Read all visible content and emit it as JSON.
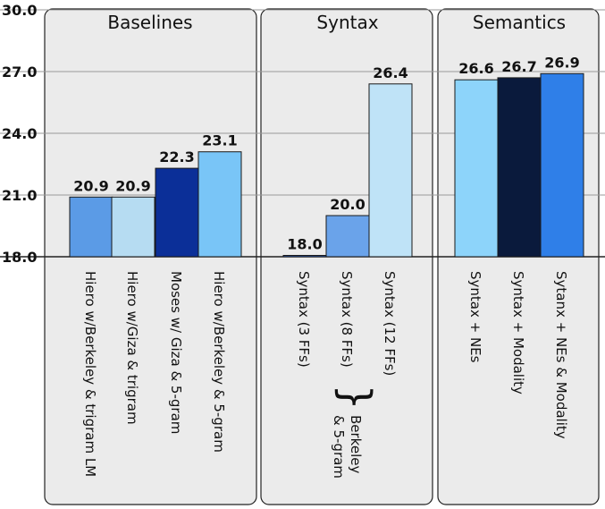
{
  "chart_data": {
    "type": "bar",
    "title": "",
    "xlabel": "",
    "ylabel": "",
    "ylim": [
      18.0,
      30.0
    ],
    "yticks": [
      "18.0",
      "21.0",
      "24.0",
      "27.0",
      "30.0"
    ],
    "ytick_values": [
      18,
      21,
      24,
      27,
      30
    ],
    "grid": true,
    "groups": [
      {
        "name": "Baselines",
        "bars": [
          {
            "label": "Hiero w/Berkeley & trigram LM",
            "value": 20.9,
            "value_label": "20.9",
            "color": "#5b9be6"
          },
          {
            "label": "Hiero w/Giza  & trigram",
            "value": 20.9,
            "value_label": "20.9",
            "color": "#b6dcf2"
          },
          {
            "label": "Moses w/ Giza & 5-gram",
            "value": 22.3,
            "value_label": "22.3",
            "color": "#0b2f98"
          },
          {
            "label": "Hiero w/Berkeley & 5-gram",
            "value": 23.1,
            "value_label": "23.1",
            "color": "#79c5f7"
          }
        ]
      },
      {
        "name": "Syntax",
        "bars": [
          {
            "label": "Syntax (3 FFs)",
            "value": 18.0,
            "value_label": "18.0",
            "color": "#2f5fc0"
          },
          {
            "label": "Syntax (8 FFs)",
            "value": 20.0,
            "value_label": "20.0",
            "color": "#6aa3ea"
          },
          {
            "label": "Syntax (12 FFs)",
            "value": 26.4,
            "value_label": "26.4",
            "color": "#bfe3f7"
          }
        ]
      },
      {
        "name": "Semantics",
        "bars": [
          {
            "label": "Syntax + NEs",
            "value": 26.6,
            "value_label": "26.6",
            "color": "#8dd4fa"
          },
          {
            "label": "Syntax + Modality",
            "value": 26.7,
            "value_label": "26.7",
            "color": "#0a1a3c"
          },
          {
            "label": "Sytanx + NEs & Modality",
            "value": 26.9,
            "value_label": "26.9",
            "color": "#2f7fe8"
          }
        ]
      }
    ],
    "annotation": {
      "brace": "}",
      "lines": [
        "Berkeley",
        "& 5-gram"
      ]
    }
  }
}
